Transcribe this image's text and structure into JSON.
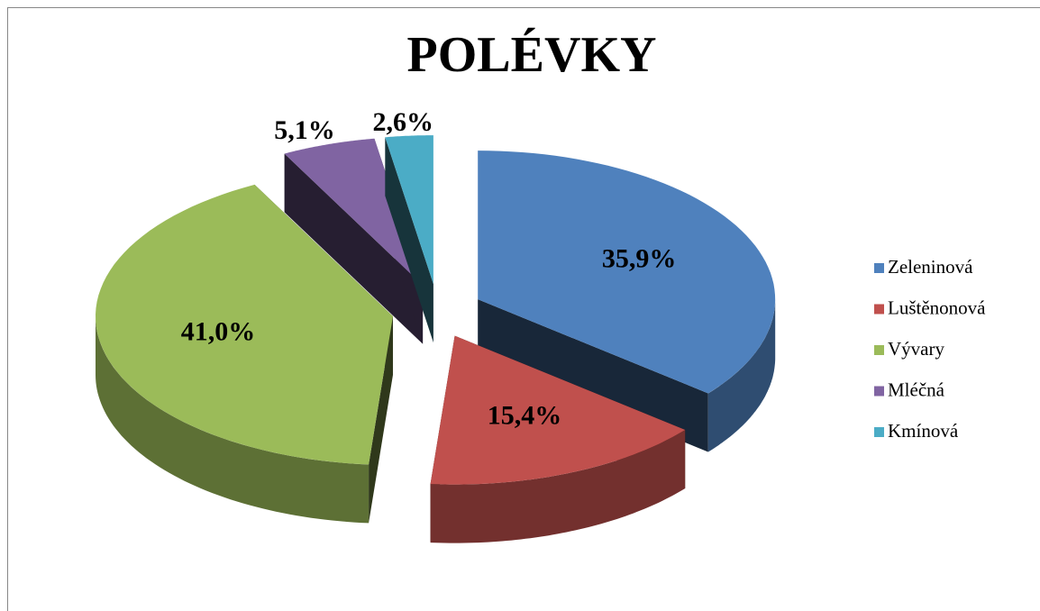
{
  "chart_data": {
    "type": "pie3d",
    "title": "POLÉVKY",
    "categories": [
      "Zeleninová",
      "Luštěnonová",
      "Vývary",
      "Mléčná",
      "Kmínová"
    ],
    "values": [
      35.9,
      15.4,
      41.0,
      5.1,
      2.6
    ],
    "value_labels": [
      "35,9%",
      "15,4%",
      "41,0%",
      "5,1%",
      "2,6%"
    ],
    "colors": [
      "#4f81bd",
      "#c0504d",
      "#9bbb59",
      "#8064a2",
      "#4bacc6"
    ],
    "legend": "right"
  }
}
